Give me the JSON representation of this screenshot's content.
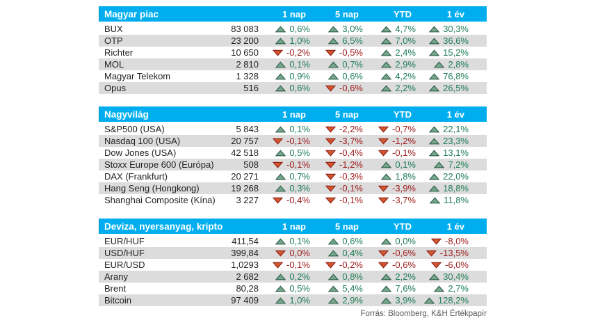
{
  "columns": [
    "1 nap",
    "5 nap",
    "YTD",
    "1 év"
  ],
  "footer": "Forrás: Bloomberg, K&H Értékpapír",
  "colors": {
    "header_bg": "#00AEEF",
    "row_alt_bg": "#DCDCDC",
    "positive_text": "#1F7D57",
    "negative_text": "#9E1A1A",
    "up_arrow_fill": "#76A78D",
    "up_arrow_stroke": "#2F5D49",
    "down_arrow_fill": "#D2572F",
    "down_arrow_stroke": "#8F1D10"
  },
  "tables": [
    {
      "title": "Magyar piac",
      "rows": [
        {
          "name": "BUX",
          "value": "83 083",
          "changes": [
            {
              "dir": "up",
              "pct": "0,6%"
            },
            {
              "dir": "up",
              "pct": "3,0%"
            },
            {
              "dir": "up",
              "pct": "4,7%"
            },
            {
              "dir": "up",
              "pct": "30,3%"
            }
          ]
        },
        {
          "name": "OTP",
          "value": "23 200",
          "changes": [
            {
              "dir": "up",
              "pct": "1,0%"
            },
            {
              "dir": "up",
              "pct": "6,5%"
            },
            {
              "dir": "up",
              "pct": "7,0%"
            },
            {
              "dir": "up",
              "pct": "36,6%"
            }
          ]
        },
        {
          "name": "Richter",
          "value": "10 650",
          "changes": [
            {
              "dir": "down",
              "pct": "-0,2%"
            },
            {
              "dir": "down",
              "pct": "-0,5%"
            },
            {
              "dir": "up",
              "pct": "2,4%"
            },
            {
              "dir": "up",
              "pct": "15,2%"
            }
          ]
        },
        {
          "name": "MOL",
          "value": "2 810",
          "changes": [
            {
              "dir": "up",
              "pct": "0,1%"
            },
            {
              "dir": "up",
              "pct": "0,7%"
            },
            {
              "dir": "up",
              "pct": "2,9%"
            },
            {
              "dir": "up",
              "pct": "2,8%"
            }
          ]
        },
        {
          "name": "Magyar Telekom",
          "value": "1 328",
          "changes": [
            {
              "dir": "up",
              "pct": "0,9%"
            },
            {
              "dir": "up",
              "pct": "0,6%"
            },
            {
              "dir": "up",
              "pct": "4,2%"
            },
            {
              "dir": "up",
              "pct": "76,8%"
            }
          ]
        },
        {
          "name": "Opus",
          "value": "516",
          "changes": [
            {
              "dir": "up",
              "pct": "0,6%"
            },
            {
              "dir": "down",
              "pct": "-0,6%"
            },
            {
              "dir": "up",
              "pct": "2,2%"
            },
            {
              "dir": "up",
              "pct": "26,5%"
            }
          ]
        }
      ]
    },
    {
      "title": "Nagyvilág",
      "rows": [
        {
          "name": "S&P500 (USA)",
          "value": "5 843",
          "changes": [
            {
              "dir": "up",
              "pct": "0,1%"
            },
            {
              "dir": "down",
              "pct": "-2,2%"
            },
            {
              "dir": "down",
              "pct": "-0,7%"
            },
            {
              "dir": "up",
              "pct": "22,1%"
            }
          ]
        },
        {
          "name": "Nasdaq 100 (USA)",
          "value": "20 757",
          "changes": [
            {
              "dir": "down",
              "pct": "-0,1%"
            },
            {
              "dir": "down",
              "pct": "-3,7%"
            },
            {
              "dir": "down",
              "pct": "-1,2%"
            },
            {
              "dir": "up",
              "pct": "23,3%"
            }
          ]
        },
        {
          "name": "Dow Jones (USA)",
          "value": "42 518",
          "changes": [
            {
              "dir": "up",
              "pct": "0,5%"
            },
            {
              "dir": "down",
              "pct": "-0,4%"
            },
            {
              "dir": "down",
              "pct": "-0,1%"
            },
            {
              "dir": "up",
              "pct": "13,1%"
            }
          ]
        },
        {
          "name": "Stoxx Europe 600 (Európa)",
          "value": "508",
          "changes": [
            {
              "dir": "down",
              "pct": "-0,1%"
            },
            {
              "dir": "down",
              "pct": "-1,2%"
            },
            {
              "dir": "up",
              "pct": "0,1%"
            },
            {
              "dir": "up",
              "pct": "7,2%"
            }
          ]
        },
        {
          "name": "DAX (Frankfurt)",
          "value": "20 271",
          "changes": [
            {
              "dir": "up",
              "pct": "0,7%"
            },
            {
              "dir": "down",
              "pct": "-0,3%"
            },
            {
              "dir": "up",
              "pct": "1,8%"
            },
            {
              "dir": "up",
              "pct": "22,0%"
            }
          ]
        },
        {
          "name": "Hang Seng (Hongkong)",
          "value": "19 268",
          "changes": [
            {
              "dir": "up",
              "pct": "0,3%"
            },
            {
              "dir": "down",
              "pct": "-0,1%"
            },
            {
              "dir": "down",
              "pct": "-3,9%"
            },
            {
              "dir": "up",
              "pct": "18,8%"
            }
          ]
        },
        {
          "name": "Shanghai Composite (Kína)",
          "value": "3 227",
          "changes": [
            {
              "dir": "down",
              "pct": "-0,4%"
            },
            {
              "dir": "down",
              "pct": "-0,1%"
            },
            {
              "dir": "down",
              "pct": "-3,7%"
            },
            {
              "dir": "up",
              "pct": "11,8%"
            }
          ]
        }
      ]
    },
    {
      "title": "Deviza, nyersanyag, kripto",
      "rows": [
        {
          "name": "EUR/HUF",
          "value": "411,54",
          "changes": [
            {
              "dir": "up",
              "pct": "0,1%"
            },
            {
              "dir": "up",
              "pct": "0,6%"
            },
            {
              "dir": "up",
              "pct": "0,0%"
            },
            {
              "dir": "down",
              "pct": "-8,0%"
            }
          ]
        },
        {
          "name": "USD/HUF",
          "value": "399,84",
          "changes": [
            {
              "dir": "down",
              "pct": "0,0%"
            },
            {
              "dir": "up",
              "pct": "0,4%"
            },
            {
              "dir": "down",
              "pct": "-0,6%"
            },
            {
              "dir": "down",
              "pct": "-13,5%"
            }
          ]
        },
        {
          "name": "EUR/USD",
          "value": "1,0293",
          "changes": [
            {
              "dir": "down",
              "pct": "-0,1%"
            },
            {
              "dir": "down",
              "pct": "-0,2%"
            },
            {
              "dir": "down",
              "pct": "-0,6%"
            },
            {
              "dir": "down",
              "pct": "-6,0%"
            }
          ]
        },
        {
          "name": "Arany",
          "value": "2 682",
          "changes": [
            {
              "dir": "up",
              "pct": "0,2%"
            },
            {
              "dir": "up",
              "pct": "0,8%"
            },
            {
              "dir": "up",
              "pct": "2,2%"
            },
            {
              "dir": "up",
              "pct": "30,4%"
            }
          ]
        },
        {
          "name": "Brent",
          "value": "80,28",
          "changes": [
            {
              "dir": "up",
              "pct": "0,5%"
            },
            {
              "dir": "up",
              "pct": "5,4%"
            },
            {
              "dir": "up",
              "pct": "7,6%"
            },
            {
              "dir": "up",
              "pct": "2,7%"
            }
          ]
        },
        {
          "name": "Bitcoin",
          "value": "97 409",
          "changes": [
            {
              "dir": "up",
              "pct": "1,0%"
            },
            {
              "dir": "up",
              "pct": "2,9%"
            },
            {
              "dir": "up",
              "pct": "3,9%"
            },
            {
              "dir": "up",
              "pct": "128,2%"
            }
          ]
        }
      ]
    }
  ]
}
